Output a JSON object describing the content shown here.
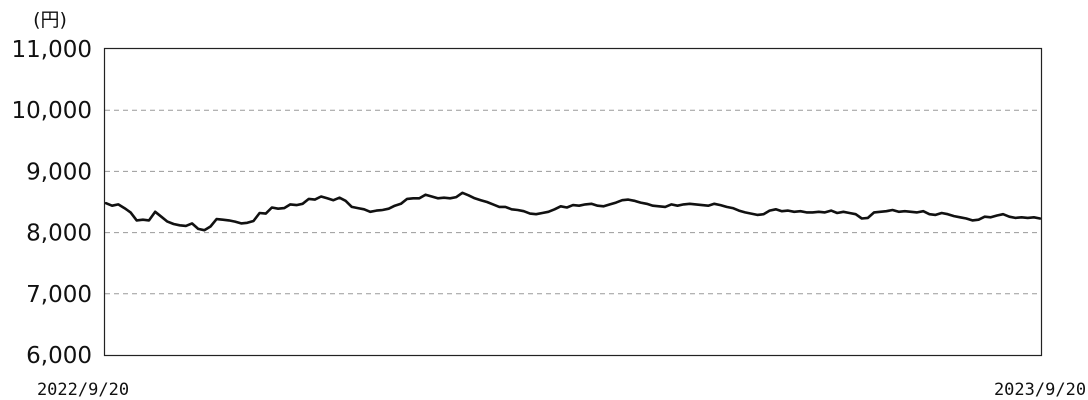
{
  "chart_data": {
    "type": "line",
    "unit_label": "(円)",
    "x_start_label": "2022/9/20",
    "x_end_label": "2023/9/20",
    "ylim": [
      6000,
      11000
    ],
    "yticks": [
      6000,
      7000,
      8000,
      9000,
      10000,
      11000
    ],
    "ytick_labels": [
      "6,000",
      "7,000",
      "8,000",
      "9,000",
      "10,000",
      "11,000"
    ],
    "grid": "horizontal-dashed",
    "line_color": "#111111",
    "grid_color": "#9a9a9a",
    "series": [
      {
        "values": [
          8480,
          8440,
          8460,
          8400,
          8330,
          8200,
          8210,
          8200,
          8340,
          8260,
          8180,
          8140,
          8120,
          8110,
          8150,
          8060,
          8040,
          8100,
          8220,
          8210,
          8200,
          8180,
          8150,
          8160,
          8190,
          8320,
          8310,
          8410,
          8390,
          8400,
          8460,
          8450,
          8470,
          8550,
          8540,
          8590,
          8560,
          8530,
          8570,
          8520,
          8420,
          8400,
          8380,
          8340,
          8360,
          8370,
          8390,
          8440,
          8470,
          8550,
          8560,
          8560,
          8620,
          8590,
          8560,
          8570,
          8560,
          8580,
          8650,
          8610,
          8560,
          8530,
          8500,
          8460,
          8420,
          8420,
          8380,
          8370,
          8350,
          8310,
          8300,
          8320,
          8340,
          8380,
          8430,
          8410,
          8450,
          8440,
          8460,
          8470,
          8440,
          8430,
          8460,
          8490,
          8530,
          8540,
          8520,
          8490,
          8470,
          8440,
          8430,
          8420,
          8460,
          8440,
          8460,
          8470,
          8460,
          8450,
          8440,
          8470,
          8450,
          8420,
          8400,
          8360,
          8330,
          8310,
          8290,
          8300,
          8360,
          8380,
          8350,
          8360,
          8340,
          8350,
          8330,
          8330,
          8340,
          8330,
          8360,
          8320,
          8340,
          8320,
          8300,
          8230,
          8240,
          8330,
          8340,
          8350,
          8370,
          8340,
          8350,
          8340,
          8330,
          8350,
          8300,
          8290,
          8320,
          8300,
          8270,
          8250,
          8230,
          8200,
          8210,
          8260,
          8250,
          8280,
          8300,
          8260,
          8240,
          8250,
          8240,
          8250,
          8230
        ]
      }
    ]
  }
}
